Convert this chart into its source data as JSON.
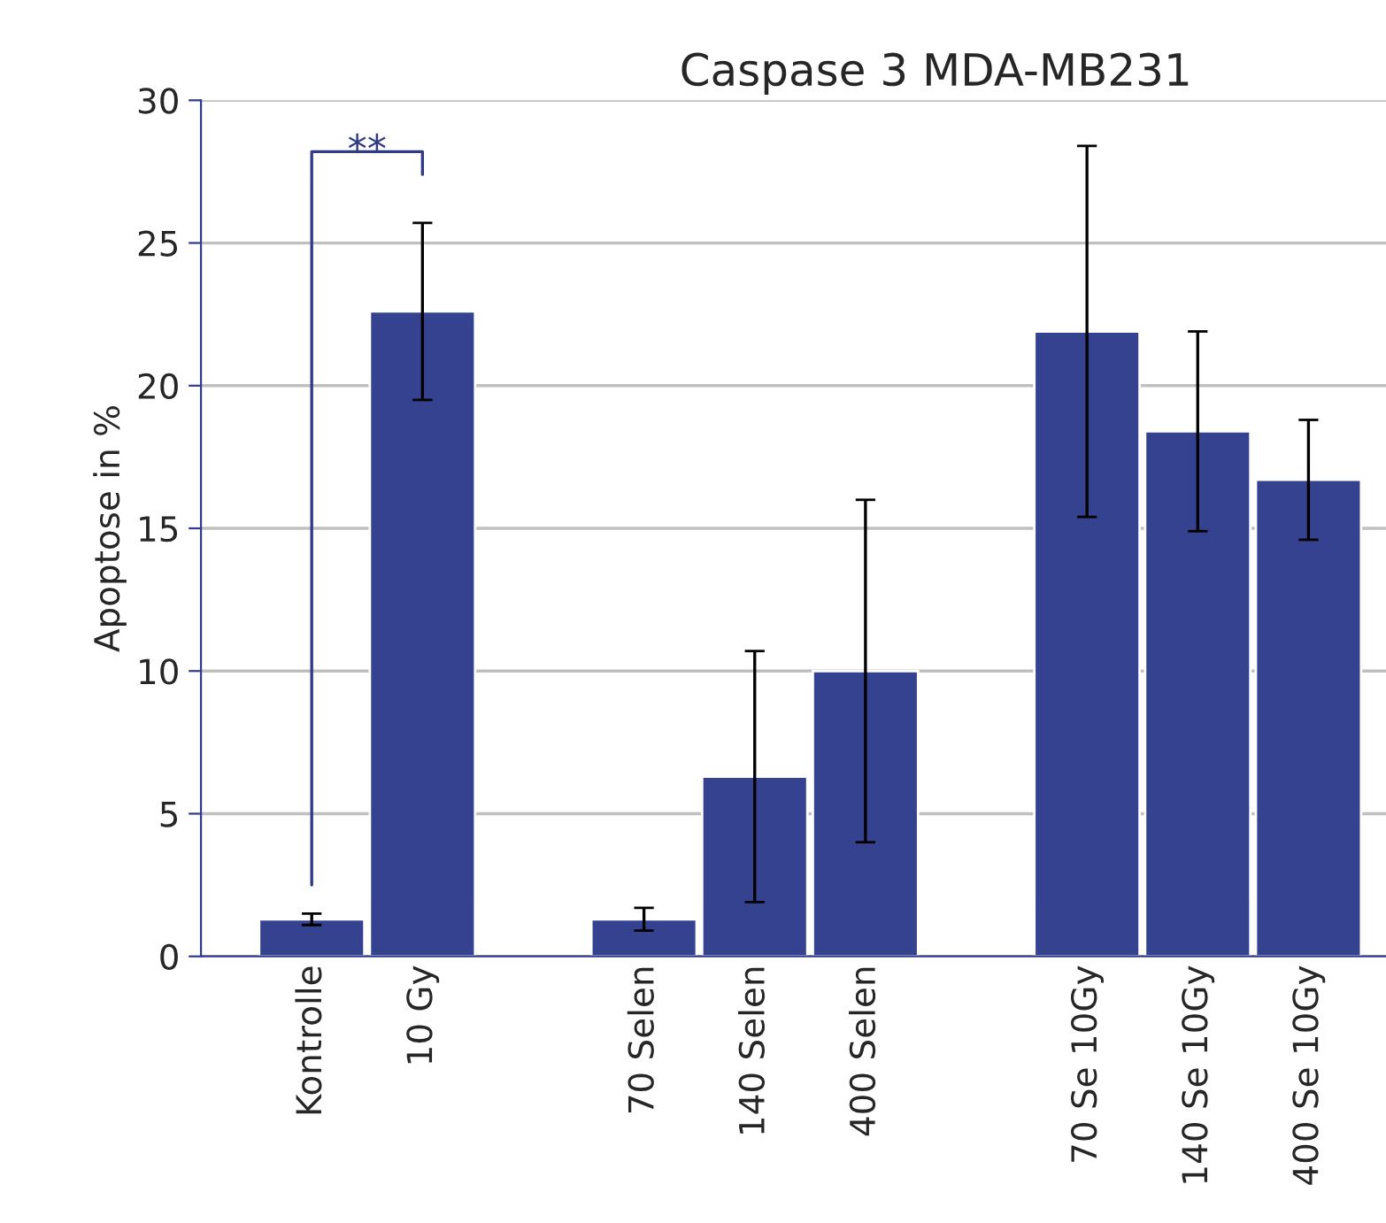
{
  "chart_data": {
    "type": "bar",
    "title": "Caspase 3 MDA-MB231",
    "ylabel": "Apoptose in %",
    "categories": [
      "Kontrolle",
      "10 Gy",
      null,
      "70 Selen",
      "140 Selen",
      "400 Selen",
      null,
      "70 Se 10Gy",
      "140 Se 10Gy",
      "400 Se 10Gy"
    ],
    "values": [
      1.3,
      22.6,
      null,
      1.3,
      6.3,
      10.0,
      null,
      21.9,
      18.4,
      16.7
    ],
    "errors": [
      0.2,
      3.1,
      null,
      0.4,
      4.4,
      6.0,
      null,
      6.5,
      3.5,
      2.1
    ],
    "color": "#34428f",
    "ylim": [
      0,
      30
    ],
    "yticks": [
      0,
      5,
      10,
      15,
      20,
      25,
      30
    ],
    "grid": "y",
    "legend": false,
    "annotations": [
      "**"
    ]
  }
}
